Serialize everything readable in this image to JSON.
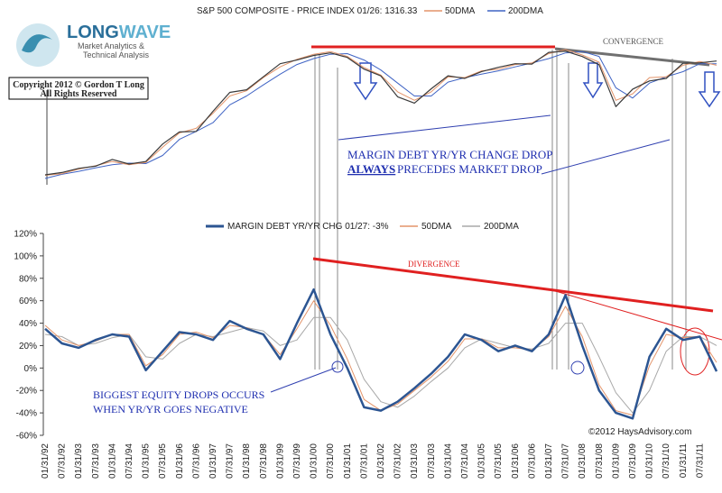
{
  "logo": {
    "brand_a": "LONG",
    "brand_b": "WAVE",
    "line1": "Market Analytics &",
    "line2": "Technical Analysis"
  },
  "copyright": [
    "Copyright 2012 © Gordon T Long",
    "All Rights Reserved"
  ],
  "chart_data": [
    {
      "type": "line",
      "title": "S&P 500 COMPOSITE - PRICE INDEX 01/26: 1316.33",
      "log": true,
      "annotations": [
        "CONVERGENCE",
        "MARGIN DEBT YR/YR CHANGE DROP",
        "ALWAYS",
        "PRECEDES MARKET DROP"
      ],
      "series": [
        {
          "color": "#3a3a3a",
          "values": [
            410,
            420,
            438,
            448,
            480,
            458,
            470,
            562,
            636,
            640,
            786,
            954,
            980,
            1120,
            1280,
            1330,
            1394,
            1430,
            1366,
            1211,
            1130,
            912,
            855,
            990,
            1131,
            1101,
            1181,
            1234,
            1280,
            1276,
            1438,
            1455,
            1378,
            1267,
            825,
            987,
            1073,
            1101,
            1286,
            1292,
            1316
          ]
        },
        {
          "name": "50DMA",
          "color": "#e3946a",
          "values": [
            408,
            415,
            435,
            450,
            470,
            455,
            465,
            545,
            630,
            660,
            770,
            920,
            970,
            1110,
            1240,
            1340,
            1410,
            1450,
            1380,
            1230,
            1140,
            960,
            880,
            960,
            1120,
            1110,
            1190,
            1210,
            1270,
            1290,
            1420,
            1480,
            1400,
            1300,
            880,
            940,
            1110,
            1120,
            1260,
            1310,
            1260
          ]
        },
        {
          "name": "200DMA",
          "color": "#3f63c4",
          "values": [
            395,
            412,
            425,
            440,
            455,
            462,
            460,
            500,
            590,
            640,
            700,
            840,
            920,
            1030,
            1150,
            1270,
            1350,
            1410,
            1420,
            1330,
            1200,
            1050,
            920,
            920,
            1060,
            1110,
            1150,
            1190,
            1240,
            1290,
            1350,
            1430,
            1450,
            1380,
            1000,
            900,
            1050,
            1120,
            1180,
            1280,
            1280
          ]
        }
      ]
    },
    {
      "type": "line",
      "annotations": [
        "DIVERGENCE",
        "BIGGEST EQUITY DROPS OCCURS",
        "WHEN YR/YR GOES NEGATIVE",
        "©2012 HaysAdvisory.com"
      ],
      "categories": [
        "01/31/92",
        "07/31/92",
        "01/31/93",
        "07/31/93",
        "01/31/94",
        "07/31/94",
        "01/31/95",
        "07/31/95",
        "01/31/96",
        "07/31/96",
        "01/31/97",
        "07/31/97",
        "01/31/98",
        "07/31/98",
        "01/31/99",
        "07/31/99",
        "01/31/00",
        "07/31/00",
        "01/31/01",
        "07/31/01",
        "01/31/02",
        "07/31/02",
        "01/31/03",
        "07/31/03",
        "01/31/04",
        "07/31/04",
        "01/31/05",
        "07/31/05",
        "01/31/06",
        "07/31/06",
        "01/31/07",
        "07/31/07",
        "01/31/08",
        "07/31/08",
        "01/31/09",
        "07/31/09",
        "01/31/10",
        "07/31/10",
        "01/31/11",
        "07/31/11",
        null
      ],
      "ylim": [
        -60,
        120
      ],
      "yticks": [
        {
          "value": -60,
          "label": "-60%"
        },
        {
          "value": -40,
          "label": "-40%"
        },
        {
          "value": -20,
          "label": "-20%"
        },
        {
          "value": 0,
          "label": "0%"
        },
        {
          "value": 20,
          "label": "20%"
        },
        {
          "value": 40,
          "label": "40%"
        },
        {
          "value": 60,
          "label": "60%"
        },
        {
          "value": 80,
          "label": "80%"
        },
        {
          "value": 100,
          "label": "100%"
        },
        {
          "value": 120,
          "label": "120%"
        }
      ],
      "series": [
        {
          "name": "MARGIN DEBT YR/YR CHG 01/27: -3%",
          "color": "#2c5592",
          "values": [
            35,
            22,
            18,
            25,
            30,
            28,
            -2,
            15,
            32,
            30,
            25,
            42,
            35,
            30,
            8,
            40,
            70,
            30,
            0,
            -35,
            -38,
            -30,
            -18,
            -5,
            10,
            30,
            25,
            15,
            20,
            15,
            30,
            65,
            20,
            -20,
            -40,
            -45,
            10,
            35,
            25,
            28,
            -3
          ]
        },
        {
          "name": "50DMA",
          "color": "#e3946a",
          "values": [
            38,
            25,
            20,
            24,
            30,
            30,
            2,
            12,
            30,
            32,
            27,
            38,
            36,
            30,
            12,
            35,
            60,
            38,
            8,
            -28,
            -38,
            -32,
            -20,
            -8,
            6,
            26,
            26,
            18,
            18,
            16,
            28,
            55,
            28,
            -15,
            -38,
            -42,
            2,
            30,
            27,
            28,
            5
          ]
        },
        {
          "name": "200DMA",
          "color": "#a8a8a8",
          "values": [
            30,
            28,
            20,
            22,
            27,
            30,
            10,
            8,
            22,
            30,
            28,
            32,
            36,
            33,
            20,
            25,
            45,
            45,
            25,
            -10,
            -30,
            -35,
            -25,
            -12,
            0,
            18,
            26,
            22,
            18,
            17,
            22,
            40,
            40,
            10,
            -22,
            -40,
            -20,
            15,
            28,
            28,
            20
          ]
        }
      ]
    }
  ]
}
